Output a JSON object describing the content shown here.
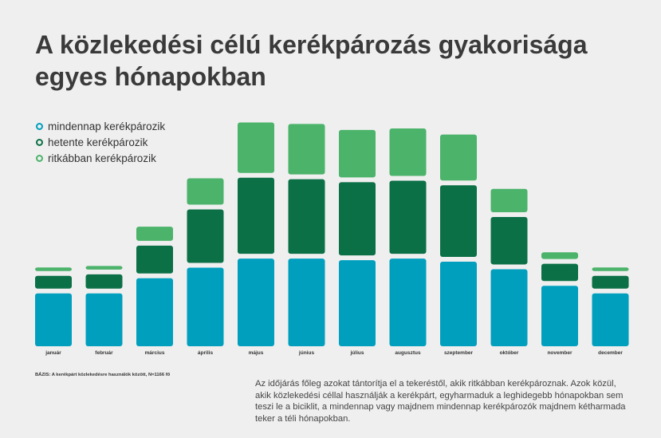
{
  "title": "A közlekedési célú kerékpározás gyakorisága egyes hónapokban",
  "colors": {
    "background": "#efefef",
    "daily": "#009fbe",
    "weekly": "#0c7047",
    "rarely": "#4bb36a"
  },
  "chart_data": {
    "type": "bar",
    "stacked": true,
    "title": "A közlekedési célú kerékpározás gyakorisága egyes hónapokban",
    "categories": [
      "január",
      "február",
      "március",
      "április",
      "május",
      "június",
      "július",
      "augusztus",
      "szeptember",
      "október",
      "november",
      "december"
    ],
    "series": [
      {
        "name": "mindennap kerékpározik",
        "color": "#009fbe",
        "values": [
          35,
          35,
          45,
          52,
          58,
          58,
          57,
          58,
          56,
          51,
          40,
          35
        ]
      },
      {
        "name": "hetente kerékpározik",
        "color": "#0c7047",
        "values": [
          10,
          11,
          20,
          37,
          52,
          51,
          50,
          50,
          49,
          33,
          13,
          10
        ]
      },
      {
        "name": "ritkábban kerékpározik",
        "color": "#4bb36a",
        "values": [
          4,
          4,
          11,
          19,
          35,
          35,
          33,
          33,
          32,
          17,
          6,
          4
        ]
      }
    ],
    "ylim": [
      0,
      150
    ],
    "grid": false,
    "legend": "top-left",
    "xlabel": "",
    "ylabel": ""
  },
  "legend": [
    {
      "label": "mindennap kerékpározik",
      "color": "#009fbe"
    },
    {
      "label": "hetente kerékpározik",
      "color": "#0c7047"
    },
    {
      "label": "ritkábban kerékpározik",
      "color": "#4bb36a"
    }
  ],
  "basis": "BÁZIS: A kerékpárt közlekedésre használók között, N=1166 fő",
  "note": "Az időjárás főleg azokat tántorítja el a tekeréstől, akik ritkábban kerékpároznak. Azok közül, akik közlekedési céllal használják a kerékpárt, egyharmaduk a leghidegebb hónapokban sem teszi le a biciklit, a mindennap vagy majdnem mindennap kerékpározók majdnem kétharmada teker a téli hónapokban."
}
